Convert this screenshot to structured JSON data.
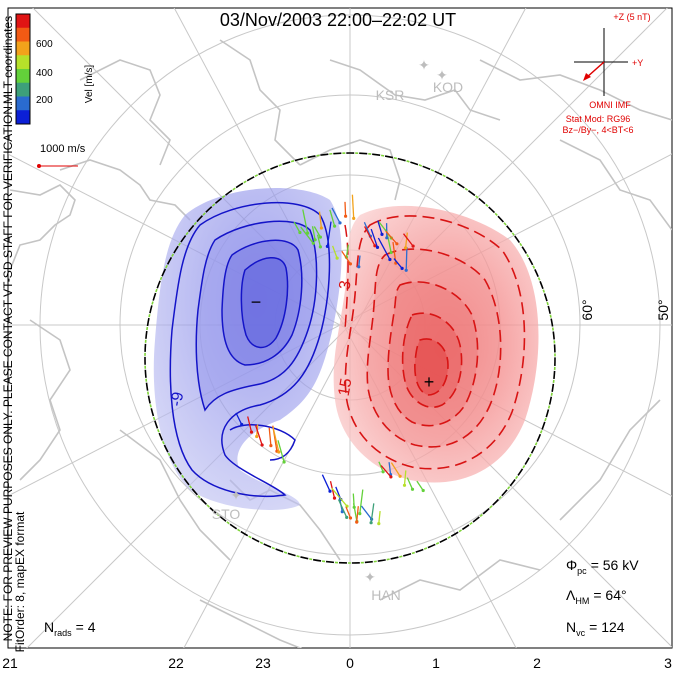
{
  "title": "03/Nov/2003 22:00–22:02 UT",
  "colorbar": {
    "label": "Vel [m/s]",
    "ticks": [
      "600",
      "400",
      "200"
    ],
    "colors": [
      "#0b1fd6",
      "#2a6bd0",
      "#3da07a",
      "#63d13a",
      "#b6e02a",
      "#f2a21b",
      "#f25a14",
      "#e01414"
    ]
  },
  "coords_label": "MLT coordinates",
  "vector_scale": "1000 m/s",
  "notice": "NOTE: FOR PREVIEW PURPOSES ONLY. PLEASE CONTACT VT-SD STAFF FOR VERIFICATION.",
  "fit_info": "FitOrder: 8, mapEX format",
  "imf": {
    "z_label": "+Z (5 nT)",
    "y_label": "+Y",
    "source": "OMNI IMF",
    "model": "Stat Mod: RG96",
    "conditions": "Bz−/By−, 4<BT<6"
  },
  "stations": [
    "KSR",
    "KOD",
    "STO",
    "HAN"
  ],
  "lat_labels": [
    "60°",
    "50°"
  ],
  "contour_labels": [
    "-9",
    "3",
    "15"
  ],
  "potential_marks": {
    "min": "−",
    "max": "+"
  },
  "stats": {
    "phi_label": "Φ",
    "phi_sub": "pc",
    "phi_value": "= 56 kV",
    "lambda_label": "Λ",
    "lambda_sub": "HM",
    "lambda_value": "= 64°",
    "nvc_label": "N",
    "nvc_sub": "vc",
    "nvc_value": "= 124",
    "nrads_label": "N",
    "nrads_sub": "rads",
    "nrads_value": "= 4"
  },
  "mlt_ticks": [
    "21",
    "22",
    "23",
    "0",
    "1",
    "2",
    "3"
  ],
  "colors": {
    "negative": "#1414c8",
    "positive": "#e01414",
    "boundary_a": "#000000",
    "boundary_b": "#7fd43a",
    "grid": "#c8c8c8",
    "coast": "#c4c4c4"
  }
}
